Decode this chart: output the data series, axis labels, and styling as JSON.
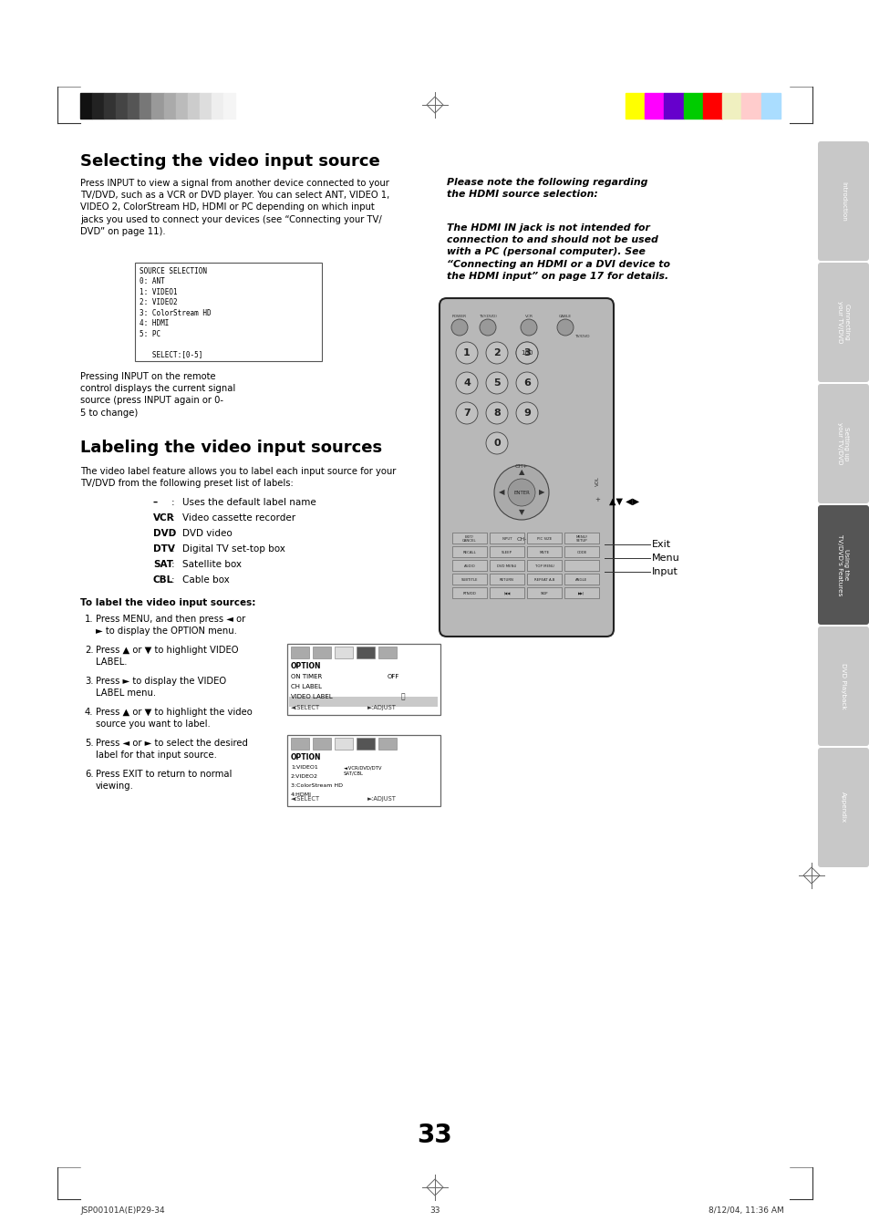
{
  "page_bg": "#ffffff",
  "page_width": 9.54,
  "page_height": 13.51,
  "title1": "Selecting the video input source",
  "title2": "Labeling the video input sources",
  "body_text1": "Press INPUT to view a signal from another device connected to your\nTV/DVD, such as a VCR or DVD player. You can select ANT, VIDEO 1,\nVIDEO 2, ColorStream HD, HDMI or PC depending on which input\njacks you used to connect your devices (see “Connecting your TV/\nDVD” on page 11).",
  "caption_text": "Pressing INPUT on the remote\ncontrol displays the current signal\nsource (press INPUT again or 0-\n5 to change)",
  "body_text2": "The video label feature allows you to label each input source for your\nTV/DVD from the following preset list of labels:",
  "label_items": [
    [
      "–",
      "Uses the default label name"
    ],
    [
      "VCR",
      "Video cassette recorder"
    ],
    [
      "DVD",
      "DVD video"
    ],
    [
      "DTV",
      "Digital TV set-top box"
    ],
    [
      "SAT",
      "Satellite box"
    ],
    [
      "CBL",
      "Cable box"
    ]
  ],
  "steps_title": "To label the video input sources:",
  "steps": [
    "Press MENU, and then press ◄ or\n► to display the OPTION menu.",
    "Press ▲ or ▼ to highlight VIDEO\nLABEL.",
    "Press ► to display the VIDEO\nLABEL menu.",
    "Press ▲ or ▼ to highlight the video\nsource you want to label.",
    "Press ◄ or ► to select the desired\nlabel for that input source.",
    "Press EXIT to return to normal\nviewing."
  ],
  "note_title": "Please note the following regarding\nthe HDMI source selection:",
  "note_body": "The HDMI IN jack is not intended for\nconnection to and should not be used\nwith a PC (personal computer). See\n“Connecting an HDMI or a DVI device to\nthe HDMI input” on page 17 for details.",
  "page_number": "33",
  "footer_left": "JSP00101A(E)P29-34",
  "footer_center": "33",
  "footer_right": "8/12/04, 11:36 AM",
  "tab_labels": [
    "Introduction",
    "Connecting\nyour TV/DVD",
    "Setting up\nyour TV/DVD",
    "Using the\nTV/DVD's Features",
    "DVD Playback",
    "Appendix"
  ],
  "tab_color": "#c8c8c8",
  "grayscale_colors": [
    "#111111",
    "#222222",
    "#333333",
    "#444444",
    "#555555",
    "#777777",
    "#999999",
    "#aaaaaa",
    "#bbbbbb",
    "#cccccc",
    "#dddddd",
    "#eeeeee",
    "#f5f5f5"
  ],
  "color_bars": [
    "#ffff00",
    "#ff00ff",
    "#6600cc",
    "#00cc00",
    "#ff0000",
    "#f0f0c0",
    "#ffcccc",
    "#aaddff"
  ],
  "source_menu_text": "SOURCE SELECTION\n0: ANT\n1: VIDEO1\n2: VIDEO2\n3: ColorStream HD\n4: HDMI\n5: PC\n\n   SELECT:[0-5]"
}
